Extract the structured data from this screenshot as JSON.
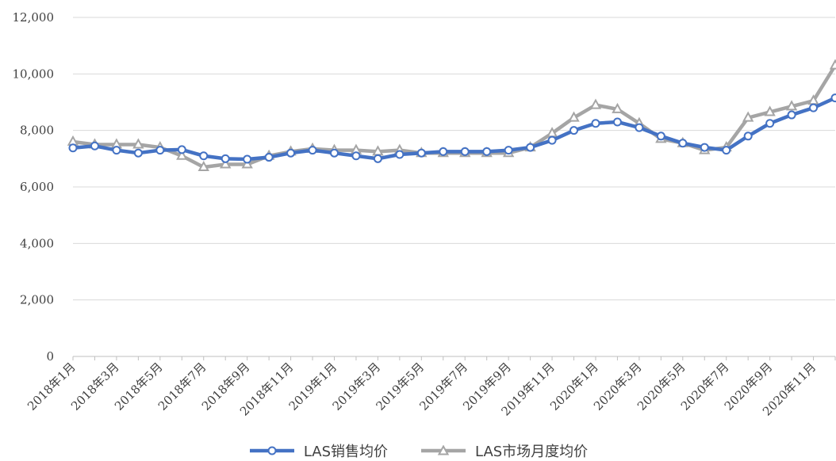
{
  "chart_data": {
    "type": "line",
    "title": "",
    "xlabel": "",
    "ylabel": "",
    "ylim": [
      0,
      12000
    ],
    "yticks": [
      "0",
      "2,000",
      "4,000",
      "6,000",
      "8,000",
      "10,000",
      "12,000"
    ],
    "ytick_values": [
      0,
      2000,
      4000,
      6000,
      8000,
      10000,
      12000
    ],
    "grid": "horizontal",
    "legend_position": "bottom",
    "x": [
      "2018年1月",
      "2018年2月",
      "2018年3月",
      "2018年4月",
      "2018年5月",
      "2018年6月",
      "2018年7月",
      "2018年8月",
      "2018年9月",
      "2018年10月",
      "2018年11月",
      "2018年12月",
      "2019年1月",
      "2019年2月",
      "2019年3月",
      "2019年4月",
      "2019年5月",
      "2019年6月",
      "2019年7月",
      "2019年8月",
      "2019年9月",
      "2019年10月",
      "2019年11月",
      "2019年12月",
      "2020年1月",
      "2020年2月",
      "2020年3月",
      "2020年4月",
      "2020年5月",
      "2020年6月",
      "2020年7月",
      "2020年8月",
      "2020年9月",
      "2020年10月",
      "2020年11月",
      "2020年12月"
    ],
    "x_tick_labels": [
      "2018年1月",
      "2018年3月",
      "2018年5月",
      "2018年7月",
      "2018年9月",
      "2018年11月",
      "2019年1月",
      "2019年3月",
      "2019年5月",
      "2019年7月",
      "2019年9月",
      "2019年11月",
      "2020年1月",
      "2020年3月",
      "2020年5月",
      "2020年7月",
      "2020年9月",
      "2020年11月"
    ],
    "series": [
      {
        "name": "LAS销售均价",
        "color": "#4472C4",
        "marker": "circle",
        "values": [
          7380,
          7450,
          7300,
          7200,
          7300,
          7320,
          7100,
          7000,
          6980,
          7050,
          7200,
          7300,
          7200,
          7100,
          7000,
          7150,
          7200,
          7250,
          7250,
          7250,
          7300,
          7400,
          7650,
          8000,
          8250,
          8300,
          8100,
          7800,
          7550,
          7400,
          7300,
          7800,
          8250,
          8550,
          8800,
          9150
        ]
      },
      {
        "name": "LAS市场月度均价",
        "color": "#A5A5A5",
        "marker": "triangle",
        "values": [
          7600,
          7500,
          7500,
          7500,
          7400,
          7100,
          6700,
          6800,
          6800,
          7100,
          7250,
          7350,
          7300,
          7300,
          7250,
          7300,
          7200,
          7200,
          7200,
          7200,
          7200,
          7400,
          7900,
          8450,
          8900,
          8750,
          8250,
          7700,
          7550,
          7300,
          7400,
          8450,
          8650,
          8850,
          9050,
          10300
        ]
      }
    ]
  }
}
